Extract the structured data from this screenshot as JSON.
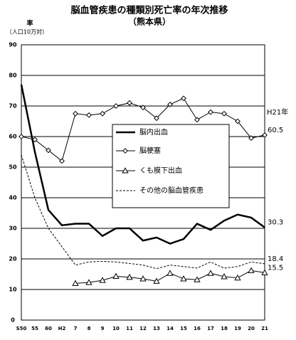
{
  "chart_data": {
    "type": "line",
    "title": "脳血管疾患の種類別死亡率の年次推移",
    "subtitle": "（熊本県）",
    "y_label": "率",
    "y_unit": "（人口10万対）",
    "annotation": "H21年",
    "categories": [
      "S50",
      "55",
      "60",
      "H2",
      "7",
      "8",
      "9",
      "10",
      "11",
      "12",
      "13",
      "14",
      "15",
      "16",
      "17",
      "18",
      "19",
      "20",
      "21"
    ],
    "ylim": [
      0,
      90
    ],
    "yticks": [
      0,
      10,
      20,
      30,
      40,
      50,
      60,
      70,
      80,
      90
    ],
    "grid": true,
    "label_last": true,
    "series": [
      {
        "name": "脳内出血",
        "color": "#000000",
        "style": "thick",
        "marker": "none",
        "values": [
          77,
          55,
          36,
          31,
          31.5,
          31.5,
          27.5,
          30,
          30,
          26,
          27,
          25,
          26.5,
          31.5,
          29.5,
          32.5,
          34.5,
          33.5,
          30.3
        ]
      },
      {
        "name": "脳梗塞",
        "color": "#000000",
        "style": "solid",
        "marker": "diamond",
        "values": [
          60,
          59,
          55.5,
          52,
          67.5,
          67,
          67.5,
          70,
          71,
          69.5,
          66,
          70.5,
          72.5,
          65.5,
          68,
          67.5,
          65,
          59.5,
          60.5
        ]
      },
      {
        "name": "くも膜下出血",
        "color": "#000000",
        "style": "solid",
        "marker": "triangle",
        "values": [
          null,
          null,
          null,
          null,
          12,
          12.3,
          13,
          14.3,
          14,
          13.5,
          12.7,
          15.3,
          13.5,
          13.2,
          15.3,
          14.2,
          13.8,
          16.2,
          15.5
        ]
      },
      {
        "name": "その他の脳血管疾患",
        "color": "#000000",
        "style": "dashed",
        "marker": "none",
        "values": [
          54,
          40,
          30,
          24,
          18,
          19,
          19.2,
          19,
          18.5,
          18,
          16.8,
          18,
          17.5,
          17,
          19,
          17,
          17.5,
          19,
          18.4
        ]
      }
    ]
  }
}
